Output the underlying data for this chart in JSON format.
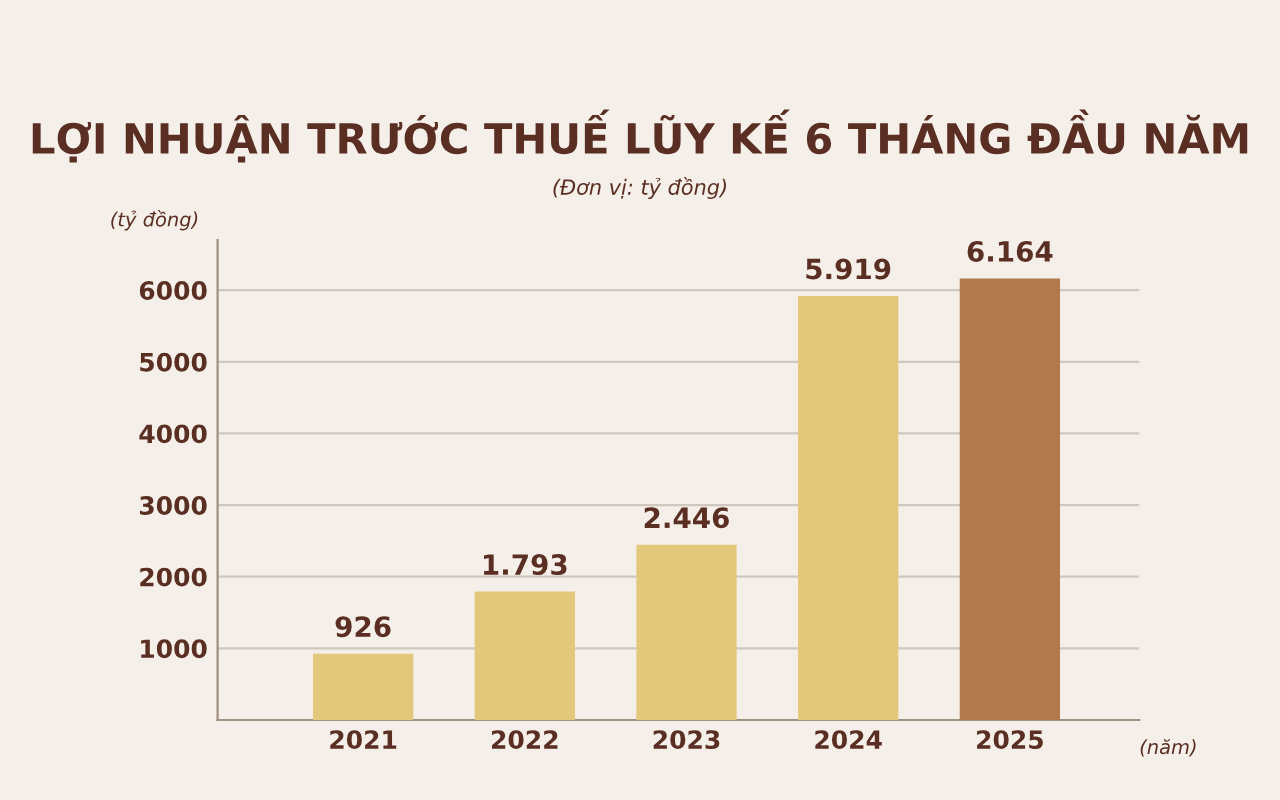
{
  "chart_data": {
    "type": "bar",
    "title": "LỢI NHUẬN TRƯỚC THUẾ LŨY KẾ 6 THÁNG ĐẦU NĂM",
    "subtitle": "(Đơn vị: tỷ đồng)",
    "ylabel": "(tỷ đồng)",
    "xlabel": "(năm)",
    "categories": [
      "2021",
      "2022",
      "2023",
      "2024",
      "2025"
    ],
    "values": [
      926,
      1793,
      2446,
      5919,
      6164
    ],
    "colors": [
      "#e3c77a",
      "#e3c77a",
      "#e3c77a",
      "#e3c77a",
      "#b27a4c"
    ],
    "value_labels": [
      "926",
      "1.793",
      "2.446",
      "5.919",
      "6.164"
    ],
    "ylim": [
      0,
      6700
    ],
    "yticks": [
      {
        "value": 0,
        "label": null
      },
      1000,
      2000,
      3000,
      4000,
      5000,
      6000
    ],
    "grid": "y"
  }
}
